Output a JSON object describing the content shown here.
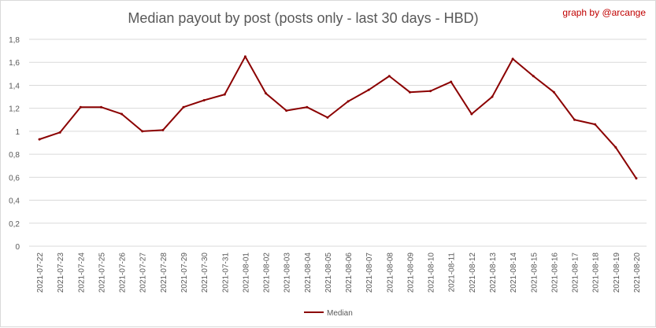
{
  "chart_data": {
    "type": "line",
    "title": "Median payout by post (posts only - last 30 days - HBD)",
    "credit": "graph by @arcange",
    "xlabel": "",
    "ylabel": "",
    "ylim": [
      0,
      1.8
    ],
    "y_ticks": [
      "0",
      "0,2",
      "0,4",
      "0,6",
      "0,8",
      "1",
      "1,2",
      "1,4",
      "1,6",
      "1,8"
    ],
    "y_tick_values": [
      0,
      0.2,
      0.4,
      0.6,
      0.8,
      1.0,
      1.2,
      1.4,
      1.6,
      1.8
    ],
    "grid": true,
    "legend_position": "bottom",
    "categories": [
      "2021-07-22",
      "2021-07-23",
      "2021-07-24",
      "2021-07-25",
      "2021-07-26",
      "2021-07-27",
      "2021-07-28",
      "2021-07-29",
      "2021-07-30",
      "2021-07-31",
      "2021-08-01",
      "2021-08-02",
      "2021-08-03",
      "2021-08-04",
      "2021-08-05",
      "2021-08-06",
      "2021-08-07",
      "2021-08-08",
      "2021-08-09",
      "2021-08-10",
      "2021-08-11",
      "2021-08-12",
      "2021-08-13",
      "2021-08-14",
      "2021-08-15",
      "2021-08-16",
      "2021-08-17",
      "2021-08-18",
      "2021-08-19",
      "2021-08-20"
    ],
    "series": [
      {
        "name": "Median",
        "color": "#8b0000",
        "values": [
          0.93,
          0.99,
          1.21,
          1.21,
          1.15,
          1.0,
          1.01,
          1.21,
          1.27,
          1.32,
          1.65,
          1.33,
          1.18,
          1.21,
          1.12,
          1.26,
          1.36,
          1.48,
          1.34,
          1.35,
          1.43,
          1.15,
          1.3,
          1.63,
          1.48,
          1.34,
          1.1,
          1.06,
          0.86,
          0.59
        ]
      }
    ]
  }
}
